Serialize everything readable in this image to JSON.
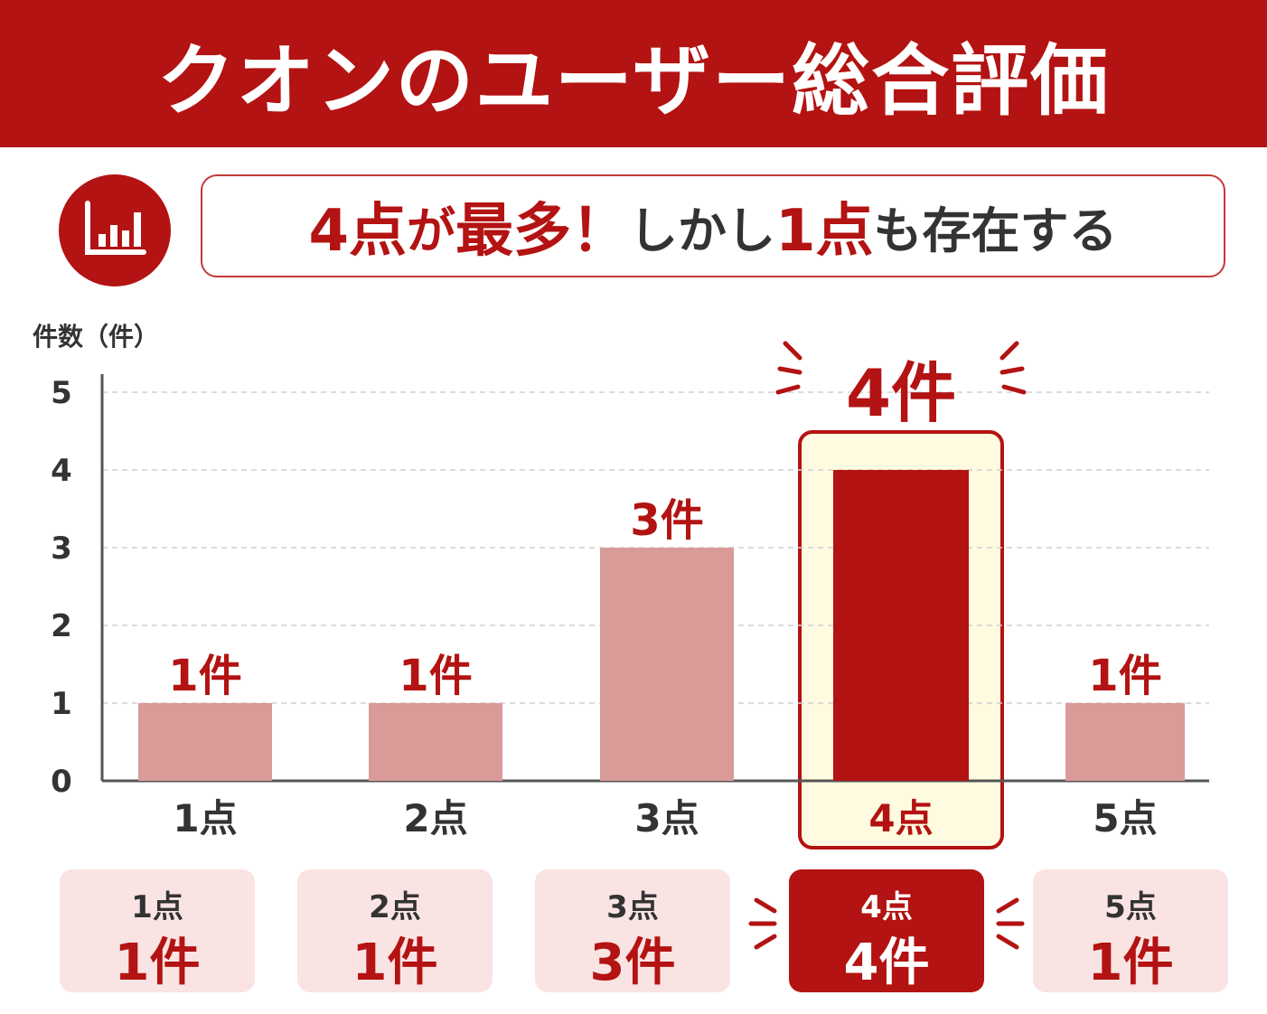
{
  "header": {
    "title": "クオンのユーザー総合評価"
  },
  "headline": {
    "icon": "bar-chart-icon",
    "parts": [
      "4点",
      "が",
      "最多！",
      "しかし",
      "1点",
      "も存在する"
    ]
  },
  "colors": {
    "accent": "#b31312",
    "bar_normal": "#d99a98",
    "highlight_bg": "#fffbe0",
    "summary_bg": "#f9e3e3"
  },
  "chart_data": {
    "type": "bar",
    "ylabel": "件数（件）",
    "ylim": [
      0,
      5
    ],
    "yticks": [
      "0",
      "1",
      "2",
      "3",
      "4",
      "5"
    ],
    "categories": [
      "1点",
      "2点",
      "3点",
      "4点",
      "5点"
    ],
    "values": [
      1,
      1,
      3,
      4,
      1
    ],
    "data_labels": [
      "1件",
      "1件",
      "3件",
      "4件",
      "1件"
    ],
    "highlight_index": 3,
    "grid": true
  },
  "summary": [
    {
      "label": "1点",
      "count": "1件"
    },
    {
      "label": "2点",
      "count": "1件"
    },
    {
      "label": "3点",
      "count": "3件"
    },
    {
      "label": "4点",
      "count": "4件"
    },
    {
      "label": "5点",
      "count": "1件"
    }
  ]
}
